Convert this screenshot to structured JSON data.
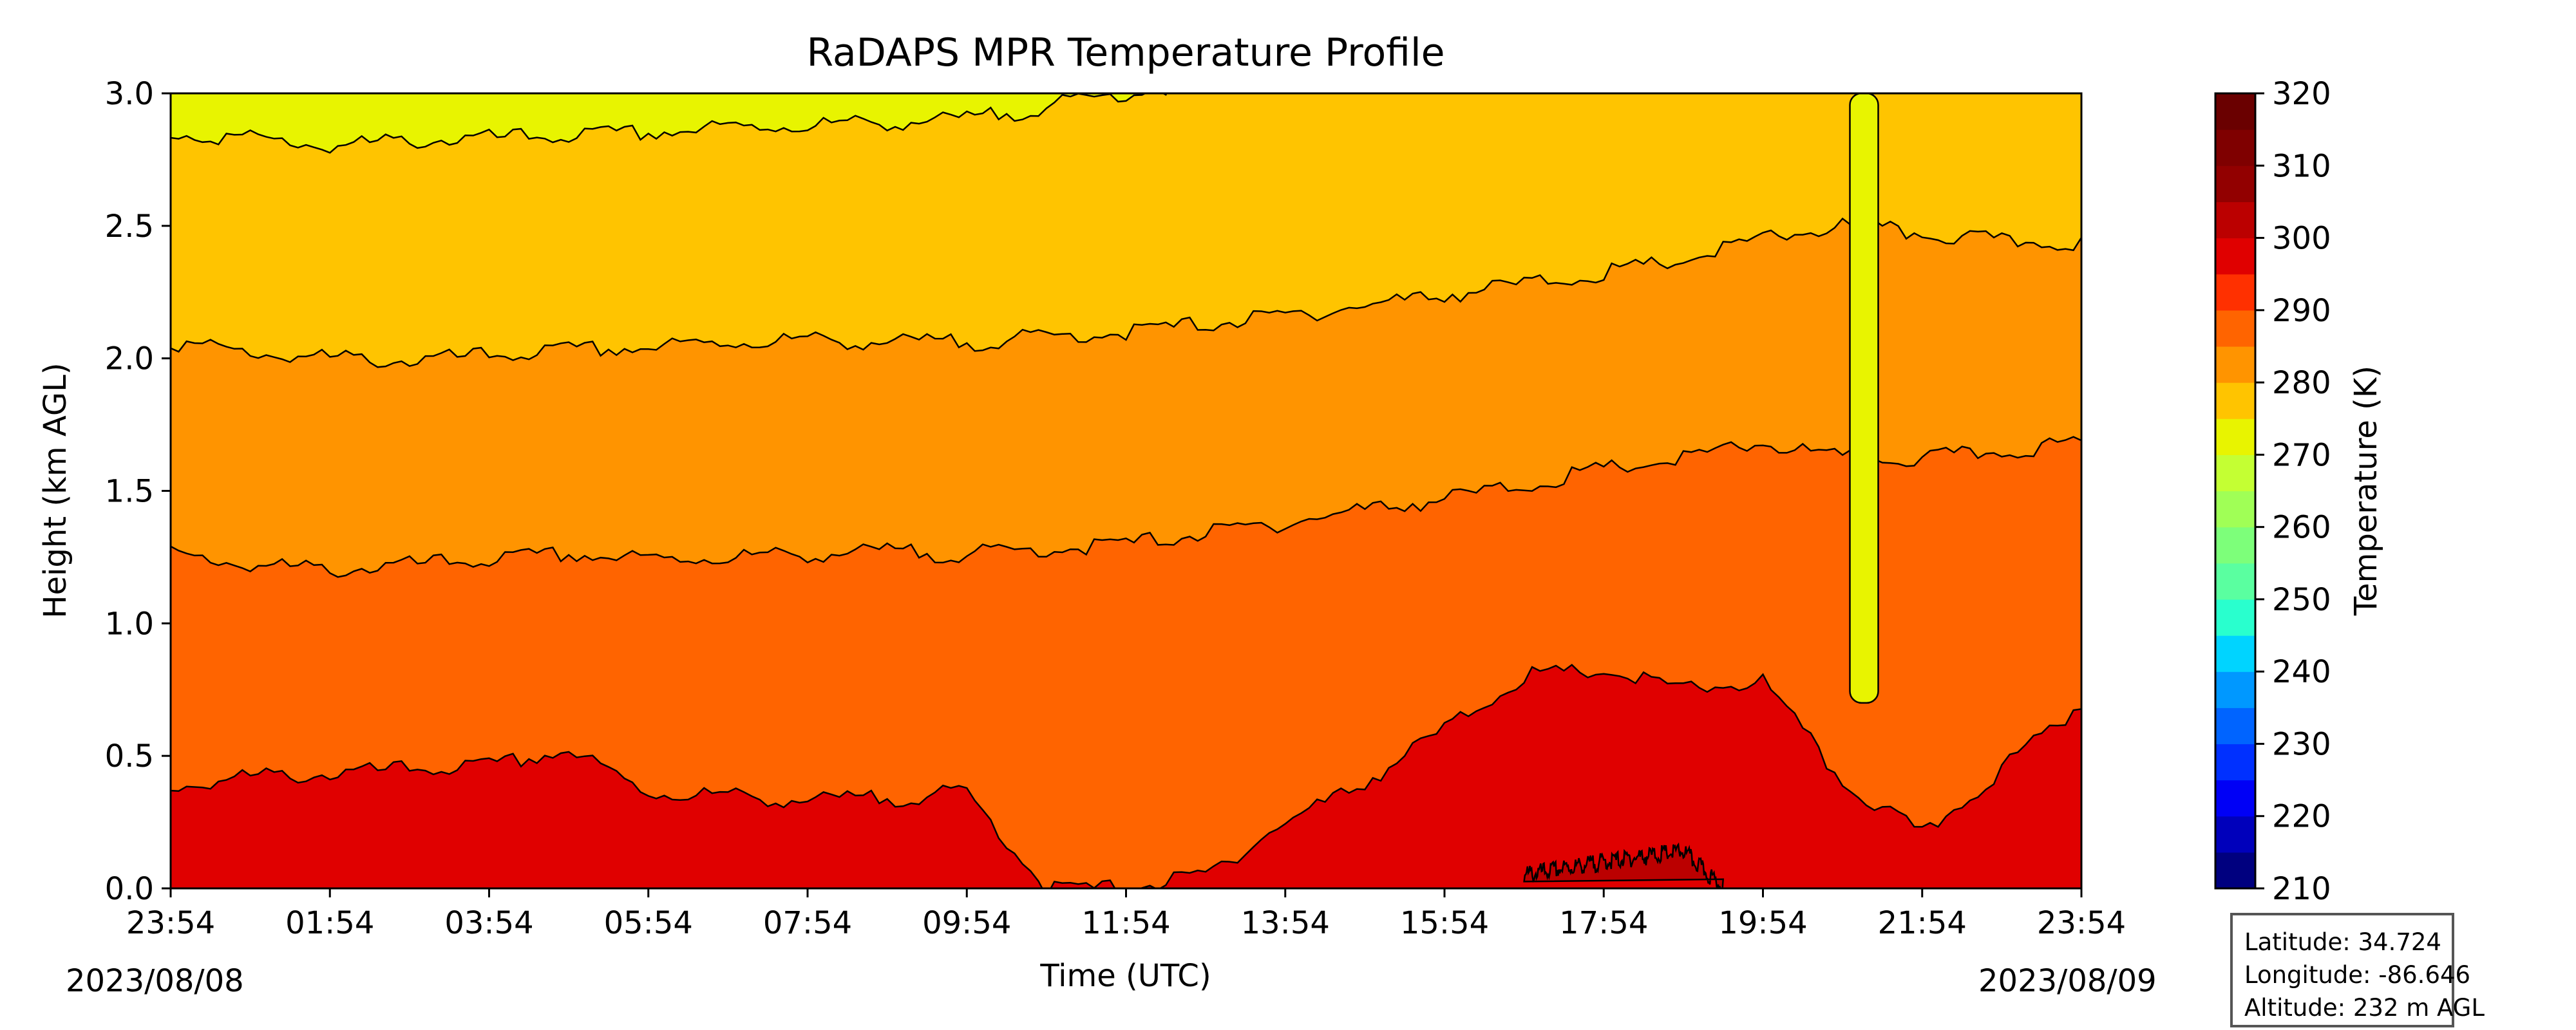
{
  "chart_data": {
    "type": "heatmap",
    "title": "RaDAPS MPR Temperature Profile",
    "xlabel": "Time (UTC)",
    "ylabel": "Height (km AGL)",
    "x_tick_labels": [
      "23:54",
      "01:54",
      "03:54",
      "05:54",
      "07:54",
      "09:54",
      "11:54",
      "13:54",
      "15:54",
      "17:54",
      "19:54",
      "21:54",
      "23:54"
    ],
    "x_range_hours": [
      0,
      24
    ],
    "start_date": "2023/08/08",
    "end_date": "2023/08/09",
    "y_ticks": [
      0.0,
      0.5,
      1.0,
      1.5,
      2.0,
      2.5,
      3.0
    ],
    "y_tick_labels": [
      "0.0",
      "0.5",
      "1.0",
      "1.5",
      "2.0",
      "2.5",
      "3.0"
    ],
    "ylim": [
      0,
      3
    ],
    "colorbar": {
      "label": "Temperature (K)",
      "range": [
        210,
        320
      ],
      "ticks": [
        210,
        220,
        230,
        240,
        250,
        260,
        270,
        280,
        290,
        300,
        310,
        320
      ],
      "tick_labels": [
        "210",
        "220",
        "230",
        "240",
        "250",
        "260",
        "270",
        "280",
        "290",
        "300",
        "310",
        "320"
      ],
      "level_step": 5,
      "colors": [
        "#00007f",
        "#0000bb",
        "#0000f6",
        "#0030ff",
        "#0064ff",
        "#0098ff",
        "#00d4ff",
        "#29ffce",
        "#5affa0",
        "#7dff7a",
        "#a0ff56",
        "#c4ff33",
        "#e8f400",
        "#ffc400",
        "#ff9400",
        "#ff6400",
        "#ff3000",
        "#e00000",
        "#bb0000",
        "#920000",
        "#7f0000",
        "#6a0000"
      ]
    },
    "contour_levels": [
      275,
      280,
      285,
      290,
      295,
      300
    ],
    "contour_heights_km": [
      {
        "level": 275,
        "x": [
          0,
          1,
          2,
          3,
          4,
          5,
          6,
          7,
          8,
          9,
          10,
          11,
          12,
          13,
          14,
          15,
          16,
          17,
          18,
          19,
          20,
          21,
          22,
          23,
          24
        ],
        "y": [
          2.85,
          2.83,
          2.8,
          2.82,
          2.83,
          2.84,
          2.85,
          2.87,
          2.88,
          2.89,
          2.9,
          2.95,
          3.0,
          3.05,
          3.1,
          3.15,
          3.2,
          3.25,
          3.3,
          3.35,
          3.4,
          3.45,
          3.5,
          3.55,
          3.6
        ]
      },
      {
        "level": 280,
        "x": [
          0,
          1,
          2,
          3,
          4,
          5,
          6,
          7,
          8,
          9,
          10,
          11,
          12,
          13,
          14,
          15,
          16,
          17,
          18,
          19,
          20,
          21,
          22,
          23,
          24
        ],
        "y": [
          2.06,
          2.02,
          2.0,
          1.99,
          2.01,
          2.03,
          2.04,
          2.06,
          2.07,
          2.06,
          2.06,
          2.08,
          2.1,
          2.13,
          2.16,
          2.2,
          2.24,
          2.28,
          2.32,
          2.37,
          2.45,
          2.5,
          2.47,
          2.44,
          2.44
        ]
      },
      {
        "level": 285,
        "x": [
          0,
          1,
          2,
          3,
          4,
          5,
          6,
          7,
          8,
          9,
          10,
          11,
          12,
          13,
          14,
          15,
          16,
          17,
          18,
          19,
          20,
          21,
          22,
          23,
          24
        ],
        "y": [
          1.26,
          1.22,
          1.2,
          1.22,
          1.24,
          1.26,
          1.24,
          1.25,
          1.26,
          1.27,
          1.26,
          1.28,
          1.3,
          1.34,
          1.38,
          1.43,
          1.47,
          1.52,
          1.58,
          1.62,
          1.68,
          1.62,
          1.62,
          1.65,
          1.68
        ]
      },
      {
        "level": 290,
        "x": [
          0,
          1,
          2,
          3,
          4,
          5,
          6,
          7,
          8,
          9,
          10,
          11,
          12,
          13,
          14,
          15,
          16,
          17,
          18,
          19,
          20,
          21,
          22,
          23,
          24
        ],
        "y": [
          0.38,
          0.42,
          0.43,
          0.45,
          0.46,
          0.52,
          0.36,
          0.35,
          0.33,
          0.34,
          0.36,
          0.0,
          0.0,
          0.05,
          0.25,
          0.4,
          0.6,
          0.8,
          0.82,
          0.75,
          0.78,
          0.4,
          0.2,
          0.45,
          0.7
        ]
      },
      {
        "level": 295,
        "x": [
          17.0,
          18.0,
          19.0,
          19.5
        ],
        "y": [
          0.05,
          0.1,
          0.14,
          0.0
        ]
      }
    ],
    "cold_anomaly": {
      "time": "21:10",
      "top_km": 3.0,
      "bottom_km": 0.7,
      "min_K": 270
    }
  },
  "info_box": {
    "latitude": "Latitude: 34.724",
    "longitude": "Longitude: -86.646",
    "altitude": "Altitude: 232 m AGL"
  }
}
